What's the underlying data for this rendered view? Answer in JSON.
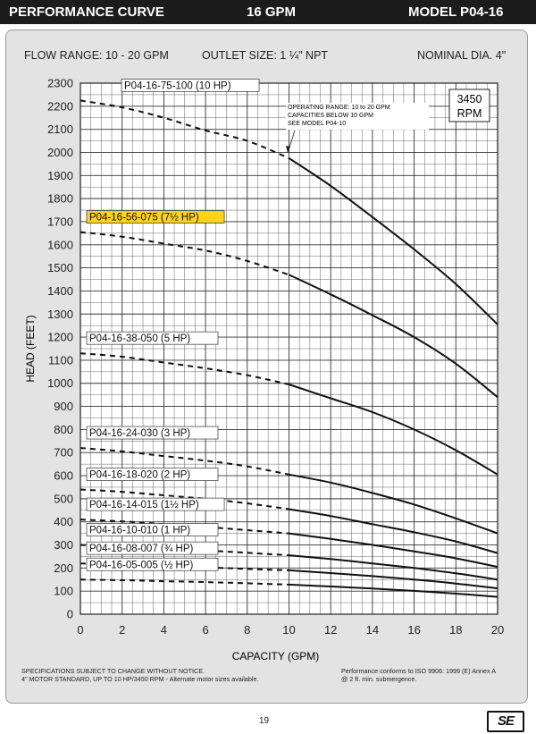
{
  "header": {
    "title": "PERFORMANCE CURVE",
    "flow": "16 GPM",
    "model": "MODEL  P04-16"
  },
  "info": {
    "flow_range": "FLOW RANGE: 10 - 20 GPM",
    "outlet": "OUTLET SIZE: 1 ¼\" NPT",
    "diameter": "NOMINAL DIA. 4\""
  },
  "rpm_box": {
    "line1": "3450",
    "line2": "RPM"
  },
  "operating_note": [
    "OPERATING RANGE: 10 to 20 GPM",
    "CAPACITIES BELOW 10 GPM",
    "SEE MODEL  P04-10"
  ],
  "chart_data": {
    "type": "line",
    "xlabel": "CAPACITY (GPM)",
    "ylabel": "HEAD (FEET)",
    "xlim": [
      0,
      20
    ],
    "ylim": [
      0,
      2300
    ],
    "xticks": [
      0,
      2,
      4,
      6,
      8,
      10,
      12,
      14,
      16,
      18,
      20
    ],
    "yticks": [
      0,
      100,
      200,
      300,
      400,
      500,
      600,
      700,
      800,
      900,
      1000,
      1100,
      1200,
      1300,
      1400,
      1500,
      1600,
      1700,
      1800,
      1900,
      2000,
      2100,
      2200,
      2300
    ],
    "grid": true,
    "dashed_below_x": 10,
    "highlight_color": "#ffd21e",
    "series": [
      {
        "name": "P04-16-75-100 (10 HP)",
        "highlight": false,
        "x": [
          0,
          2,
          4,
          6,
          8,
          10,
          12,
          14,
          16,
          18,
          20
        ],
        "y": [
          2225,
          2195,
          2150,
          2095,
          2050,
          1975,
          1855,
          1720,
          1580,
          1430,
          1255
        ]
      },
      {
        "name": "P04-16-56-075 (7½ HP)",
        "highlight": true,
        "x": [
          0,
          2,
          4,
          6,
          8,
          10,
          12,
          14,
          16,
          18,
          20
        ],
        "y": [
          1655,
          1635,
          1605,
          1575,
          1530,
          1470,
          1385,
          1295,
          1200,
          1085,
          940
        ]
      },
      {
        "name": "P04-16-38-050 (5 HP)",
        "highlight": false,
        "x": [
          0,
          2,
          4,
          6,
          8,
          10,
          12,
          14,
          16,
          18,
          20
        ],
        "y": [
          1130,
          1115,
          1090,
          1065,
          1035,
          995,
          935,
          875,
          800,
          710,
          605
        ]
      },
      {
        "name": "P04-16-24-030 (3 HP)",
        "highlight": false,
        "x": [
          0,
          2,
          4,
          6,
          8,
          10,
          12,
          14,
          16,
          18,
          20
        ],
        "y": [
          720,
          705,
          685,
          665,
          640,
          605,
          570,
          525,
          475,
          415,
          350
        ]
      },
      {
        "name": "P04-16-18-020 (2 HP)",
        "highlight": false,
        "x": [
          0,
          2,
          4,
          6,
          8,
          10,
          12,
          14,
          16,
          18,
          20
        ],
        "y": [
          540,
          530,
          515,
          500,
          480,
          455,
          425,
          390,
          355,
          315,
          265
        ]
      },
      {
        "name": "P04-16-14-015 (1½ HP)",
        "highlight": false,
        "x": [
          0,
          2,
          4,
          6,
          8,
          10,
          12,
          14,
          16,
          18,
          20
        ],
        "y": [
          410,
          402,
          390,
          378,
          364,
          350,
          326,
          300,
          272,
          242,
          205
        ]
      },
      {
        "name": "P04-16-10-010 (1 HP)",
        "highlight": false,
        "x": [
          0,
          2,
          4,
          6,
          8,
          10,
          12,
          14,
          16,
          18,
          20
        ],
        "y": [
          300,
          294,
          286,
          276,
          266,
          255,
          239,
          220,
          200,
          177,
          150
        ]
      },
      {
        "name": "P04-16-08-007 (¾ HP)",
        "highlight": false,
        "x": [
          0,
          2,
          4,
          6,
          8,
          10,
          12,
          14,
          16,
          18,
          20
        ],
        "y": [
          220,
          216,
          210,
          203,
          196,
          190,
          178,
          165,
          150,
          133,
          112
        ]
      },
      {
        "name": "P04-16-05-005 (½ HP)",
        "highlight": false,
        "x": [
          0,
          2,
          4,
          6,
          8,
          10,
          12,
          14,
          16,
          18,
          20
        ],
        "y": [
          150,
          147,
          143,
          139,
          134,
          128,
          120,
          111,
          101,
          89,
          75
        ]
      }
    ]
  },
  "footer": {
    "left": "SPECIFICATIONS SUBJECT TO CHANGE WITHOUT NOTICE.\n4\" MOTOR STANDARD, UP TO 10 HP/3450 RPM - Alternate motor sizes available.",
    "right": "Performance conforms to ISO 9906: 1999 (E) Annex A\n@ 2 ft. min. submergence.",
    "page": "19",
    "logo": "SE"
  }
}
